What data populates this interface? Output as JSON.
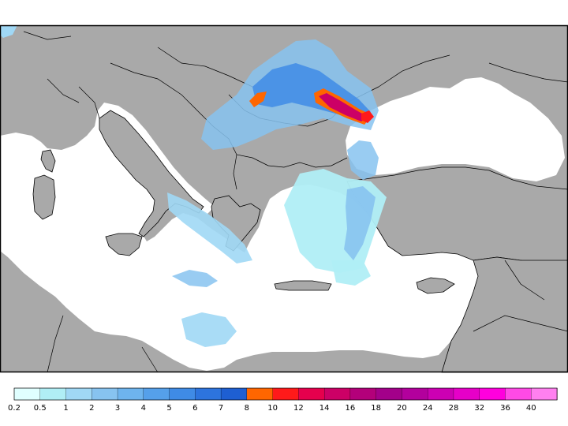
{
  "map": {
    "colors": {
      "land": "#a9a9a9",
      "sea": "#ffffff",
      "border": "#000000",
      "frame": "#000000"
    },
    "regions": [
      "Mediterranean Sea",
      "Black Sea",
      "Aegean Sea",
      "Adriatic Sea",
      "Balkans",
      "Anatolia",
      "North Africa",
      "Italy"
    ]
  },
  "legend": {
    "labels": [
      "0.2",
      "0.5",
      "1",
      "2",
      "3",
      "4",
      "5",
      "6",
      "7",
      "8",
      "10",
      "12",
      "14",
      "16",
      "18",
      "20",
      "24",
      "28",
      "32",
      "36",
      "40"
    ],
    "colors": [
      "#e0ffff",
      "#b0eef5",
      "#a0d8f5",
      "#87c3f0",
      "#6eb4ee",
      "#55a0ea",
      "#3f8be6",
      "#2d74de",
      "#1e5fd2",
      "#ff6600",
      "#ff1a1a",
      "#e6004d",
      "#cc0066",
      "#b3007a",
      "#a3008a",
      "#b3009d",
      "#cc00b3",
      "#e600c8",
      "#ff00dd",
      "#ff4ae6",
      "#ff80f0"
    ]
  }
}
